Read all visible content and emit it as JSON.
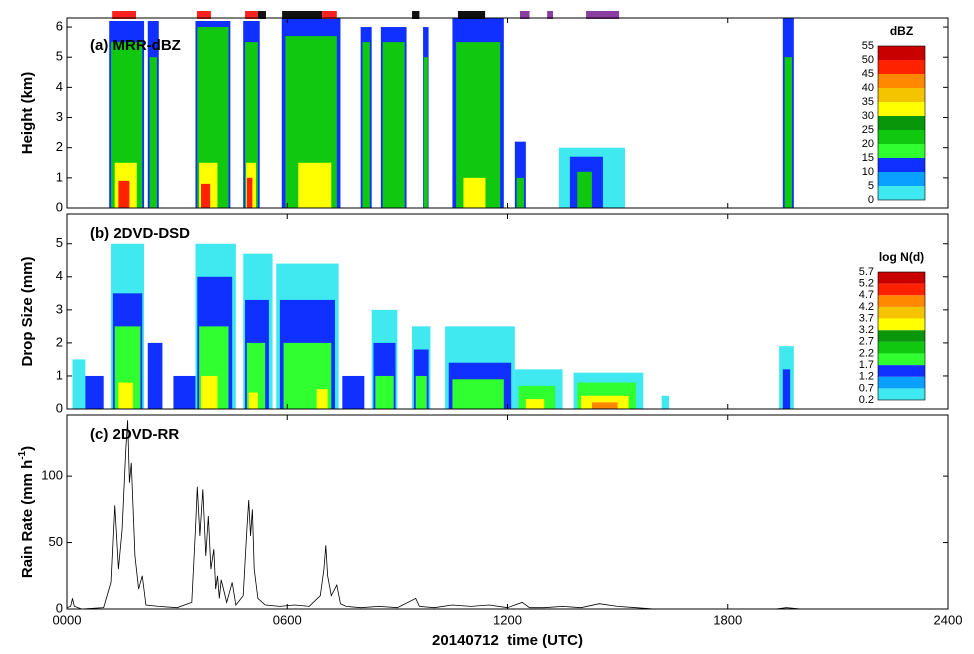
{
  "chart_data": [
    {
      "type": "contour",
      "title": "(a) MRR-dBZ",
      "ylabel": "Height (km)",
      "xlim": [
        0,
        24
      ],
      "ylim": [
        0,
        6.3
      ],
      "yticks": [
        0,
        1,
        2,
        3,
        4,
        5,
        6
      ],
      "colorbar": {
        "title": "dBZ",
        "ticks": [
          0,
          5,
          10,
          15,
          20,
          25,
          30,
          35,
          40,
          45,
          50,
          55
        ],
        "colors": [
          "#40e8f0",
          "#0aa0ff",
          "#1030ff",
          "#30ff30",
          "#10c810",
          "#0a960a",
          "#ffff00",
          "#f5c400",
          "#ff8800",
          "#ff2200",
          "#c80000"
        ]
      },
      "markers": [
        {
          "start": 1.23,
          "end": 1.88,
          "color": "#ff2020"
        },
        {
          "start": 3.54,
          "end": 3.92,
          "color": "#ff2020"
        },
        {
          "start": 4.85,
          "end": 5.2,
          "color": "#ff2020"
        },
        {
          "start": 5.2,
          "end": 5.42,
          "color": "#111111"
        },
        {
          "start": 5.86,
          "end": 6.95,
          "color": "#111111"
        },
        {
          "start": 6.95,
          "end": 7.35,
          "color": "#ff2020"
        },
        {
          "start": 9.4,
          "end": 9.6,
          "color": "#111111"
        },
        {
          "start": 10.65,
          "end": 11.39,
          "color": "#111111"
        },
        {
          "start": 12.34,
          "end": 12.6,
          "color": "#8a3fa0"
        },
        {
          "start": 13.08,
          "end": 13.24,
          "color": "#8a3fa0"
        },
        {
          "start": 14.14,
          "end": 15.04,
          "color": "#8a3fa0"
        }
      ],
      "columns": [
        {
          "start": 1.15,
          "end": 2.1,
          "top": 6.2,
          "level": 12
        },
        {
          "start": 1.2,
          "end": 2.05,
          "top": 5.5,
          "level": 22
        },
        {
          "start": 1.3,
          "end": 1.9,
          "top": 1.5,
          "level": 32
        },
        {
          "start": 1.4,
          "end": 1.7,
          "top": 0.9,
          "level": 47
        },
        {
          "start": 2.2,
          "end": 2.5,
          "top": 6.2,
          "level": 12
        },
        {
          "start": 2.25,
          "end": 2.45,
          "top": 5.0,
          "level": 22
        },
        {
          "start": 3.5,
          "end": 4.45,
          "top": 6.2,
          "level": 12
        },
        {
          "start": 3.55,
          "end": 4.4,
          "top": 6.0,
          "level": 22
        },
        {
          "start": 3.6,
          "end": 4.1,
          "top": 1.5,
          "level": 32
        },
        {
          "start": 3.65,
          "end": 3.9,
          "top": 0.8,
          "level": 47
        },
        {
          "start": 4.8,
          "end": 5.25,
          "top": 6.2,
          "level": 12
        },
        {
          "start": 4.85,
          "end": 5.2,
          "top": 5.5,
          "level": 22
        },
        {
          "start": 4.88,
          "end": 5.15,
          "top": 1.5,
          "level": 32
        },
        {
          "start": 4.9,
          "end": 5.05,
          "top": 1.0,
          "level": 47
        },
        {
          "start": 5.85,
          "end": 7.45,
          "top": 6.3,
          "level": 12
        },
        {
          "start": 5.95,
          "end": 7.35,
          "top": 5.7,
          "level": 22
        },
        {
          "start": 6.3,
          "end": 7.2,
          "top": 1.5,
          "level": 32
        },
        {
          "start": 8.0,
          "end": 8.3,
          "top": 6.0,
          "level": 12
        },
        {
          "start": 8.05,
          "end": 8.25,
          "top": 5.5,
          "level": 22
        },
        {
          "start": 8.55,
          "end": 9.25,
          "top": 6.0,
          "level": 12
        },
        {
          "start": 8.6,
          "end": 9.2,
          "top": 5.5,
          "level": 22
        },
        {
          "start": 9.7,
          "end": 9.85,
          "top": 6.0,
          "level": 12
        },
        {
          "start": 9.72,
          "end": 9.83,
          "top": 5.0,
          "level": 22
        },
        {
          "start": 10.5,
          "end": 11.9,
          "top": 6.3,
          "level": 12
        },
        {
          "start": 10.6,
          "end": 11.8,
          "top": 5.5,
          "level": 22
        },
        {
          "start": 10.8,
          "end": 11.4,
          "top": 1.0,
          "level": 32
        },
        {
          "start": 12.2,
          "end": 12.5,
          "top": 2.2,
          "level": 12
        },
        {
          "start": 12.25,
          "end": 12.45,
          "top": 1.0,
          "level": 22
        },
        {
          "start": 13.4,
          "end": 15.2,
          "top": 2.0,
          "level": 2
        },
        {
          "start": 13.7,
          "end": 14.6,
          "top": 1.7,
          "level": 12
        },
        {
          "start": 13.9,
          "end": 14.3,
          "top": 1.2,
          "level": 22
        },
        {
          "start": 19.5,
          "end": 19.8,
          "top": 6.3,
          "level": 12
        },
        {
          "start": 19.55,
          "end": 19.75,
          "top": 5.0,
          "level": 22
        }
      ]
    },
    {
      "type": "contour",
      "title": "(b) 2DVD-DSD",
      "ylabel": "Drop Size (mm)",
      "xlim": [
        0,
        24
      ],
      "ylim": [
        0,
        5.9
      ],
      "yticks": [
        0,
        1,
        2,
        3,
        4,
        5
      ],
      "colorbar": {
        "title": "log N(d)",
        "ticks": [
          0.2,
          0.7,
          1.2,
          1.7,
          2.2,
          2.7,
          3.2,
          3.7,
          4.2,
          4.7,
          5.2,
          5.7
        ],
        "colors": [
          "#40e8f0",
          "#0aa0ff",
          "#1030ff",
          "#30ff30",
          "#10c810",
          "#0a960a",
          "#ffff00",
          "#f5c400",
          "#ff8800",
          "#ff2200",
          "#c80000"
        ]
      },
      "columns": [
        {
          "start": 0.15,
          "end": 0.5,
          "top": 1.5,
          "level": 0.5
        },
        {
          "start": 0.5,
          "end": 1.0,
          "top": 1.0,
          "level": 1.5
        },
        {
          "start": 1.2,
          "end": 2.1,
          "top": 5.0,
          "level": 0.5
        },
        {
          "start": 1.25,
          "end": 2.05,
          "top": 3.5,
          "level": 1.5
        },
        {
          "start": 1.3,
          "end": 2.0,
          "top": 2.5,
          "level": 2.0
        },
        {
          "start": 1.4,
          "end": 1.8,
          "top": 0.8,
          "level": 3.4
        },
        {
          "start": 2.2,
          "end": 2.6,
          "top": 2.0,
          "level": 1.5
        },
        {
          "start": 2.9,
          "end": 3.5,
          "top": 1.0,
          "level": 1.5
        },
        {
          "start": 3.5,
          "end": 4.6,
          "top": 5.0,
          "level": 0.5
        },
        {
          "start": 3.55,
          "end": 4.5,
          "top": 4.0,
          "level": 1.5
        },
        {
          "start": 3.6,
          "end": 4.4,
          "top": 2.5,
          "level": 2.0
        },
        {
          "start": 3.65,
          "end": 4.1,
          "top": 1.0,
          "level": 3.4
        },
        {
          "start": 4.8,
          "end": 5.6,
          "top": 4.7,
          "level": 0.5
        },
        {
          "start": 4.85,
          "end": 5.5,
          "top": 3.3,
          "level": 1.5
        },
        {
          "start": 4.9,
          "end": 5.4,
          "top": 2.0,
          "level": 2.0
        },
        {
          "start": 4.95,
          "end": 5.2,
          "top": 0.5,
          "level": 3.4
        },
        {
          "start": 5.7,
          "end": 7.4,
          "top": 4.4,
          "level": 0.5
        },
        {
          "start": 5.8,
          "end": 7.3,
          "top": 3.3,
          "level": 1.5
        },
        {
          "start": 5.9,
          "end": 7.2,
          "top": 2.0,
          "level": 2.0
        },
        {
          "start": 6.8,
          "end": 7.1,
          "top": 0.6,
          "level": 3.4
        },
        {
          "start": 7.5,
          "end": 8.1,
          "top": 1.0,
          "level": 1.5
        },
        {
          "start": 8.3,
          "end": 9.0,
          "top": 3.0,
          "level": 0.5
        },
        {
          "start": 8.35,
          "end": 8.95,
          "top": 2.0,
          "level": 1.5
        },
        {
          "start": 8.4,
          "end": 8.9,
          "top": 1.0,
          "level": 2.0
        },
        {
          "start": 9.4,
          "end": 9.9,
          "top": 2.5,
          "level": 0.5
        },
        {
          "start": 9.45,
          "end": 9.85,
          "top": 1.8,
          "level": 1.5
        },
        {
          "start": 9.5,
          "end": 9.8,
          "top": 1.0,
          "level": 2.0
        },
        {
          "start": 10.3,
          "end": 12.2,
          "top": 2.5,
          "level": 0.5
        },
        {
          "start": 10.4,
          "end": 12.1,
          "top": 1.4,
          "level": 1.5
        },
        {
          "start": 10.5,
          "end": 11.9,
          "top": 0.9,
          "level": 2.0
        },
        {
          "start": 12.2,
          "end": 13.5,
          "top": 1.2,
          "level": 0.5
        },
        {
          "start": 12.3,
          "end": 13.3,
          "top": 0.7,
          "level": 2.0
        },
        {
          "start": 12.5,
          "end": 13.0,
          "top": 0.3,
          "level": 3.4
        },
        {
          "start": 13.8,
          "end": 15.7,
          "top": 1.1,
          "level": 0.5
        },
        {
          "start": 13.9,
          "end": 15.5,
          "top": 0.8,
          "level": 2.0
        },
        {
          "start": 14.0,
          "end": 15.3,
          "top": 0.4,
          "level": 3.4
        },
        {
          "start": 14.3,
          "end": 15.0,
          "top": 0.2,
          "level": 4.4
        },
        {
          "start": 16.2,
          "end": 16.4,
          "top": 0.4,
          "level": 0.5
        },
        {
          "start": 19.4,
          "end": 19.8,
          "top": 1.9,
          "level": 0.5
        },
        {
          "start": 19.5,
          "end": 19.7,
          "top": 1.2,
          "level": 1.5
        }
      ]
    },
    {
      "type": "line",
      "title": "(c) 2DVD-RR",
      "ylabel": "Rain Rate (mm h",
      "ylabel_sup": "-1",
      "ylabel_end": ")",
      "xlabel": "20140712  time (UTC)",
      "color": "#000000",
      "xlim": [
        0,
        24
      ],
      "xticks": [
        {
          "value": 0,
          "label": "0000"
        },
        {
          "value": 6,
          "label": "0600"
        },
        {
          "value": 12,
          "label": "1200"
        },
        {
          "value": 18,
          "label": "1800"
        },
        {
          "value": 24,
          "label": "2400"
        }
      ],
      "ylim": [
        0,
        146
      ],
      "yticks": [
        0,
        50,
        100
      ],
      "x": [
        0,
        0.1,
        0.15,
        0.2,
        0.4,
        1.0,
        1.2,
        1.3,
        1.4,
        1.5,
        1.6,
        1.65,
        1.7,
        1.75,
        1.85,
        1.95,
        2.05,
        2.15,
        2.5,
        3.0,
        3.4,
        3.5,
        3.55,
        3.62,
        3.7,
        3.78,
        3.85,
        3.92,
        4.0,
        4.05,
        4.1,
        4.15,
        4.2,
        4.35,
        4.5,
        4.6,
        4.8,
        4.9,
        4.95,
        5.0,
        5.05,
        5.1,
        5.2,
        5.4,
        5.8,
        6.2,
        6.6,
        6.9,
        7.0,
        7.05,
        7.1,
        7.2,
        7.35,
        7.45,
        7.6,
        8.0,
        8.5,
        9.0,
        9.5,
        9.6,
        10.0,
        10.5,
        11.0,
        11.5,
        12.0,
        12.4,
        12.6,
        13.0,
        13.5,
        14.0,
        14.5,
        15.0,
        15.5,
        16.0,
        17.0,
        18.0,
        19.3,
        19.6,
        20.0,
        22.0,
        24.0
      ],
      "values": [
        1,
        2,
        8,
        2,
        0,
        1,
        20,
        78,
        30,
        60,
        120,
        142,
        95,
        110,
        40,
        15,
        25,
        3,
        2,
        1,
        5,
        60,
        92,
        55,
        90,
        40,
        70,
        30,
        45,
        15,
        25,
        8,
        22,
        5,
        20,
        3,
        10,
        60,
        82,
        55,
        75,
        30,
        8,
        3,
        2,
        3,
        2,
        10,
        30,
        48,
        25,
        10,
        18,
        4,
        2,
        1,
        2,
        1,
        8,
        2,
        1,
        3,
        2,
        3,
        1,
        5,
        1,
        1,
        2,
        1,
        4,
        2,
        1,
        0,
        0,
        0,
        0,
        1,
        0,
        0,
        0
      ]
    }
  ]
}
